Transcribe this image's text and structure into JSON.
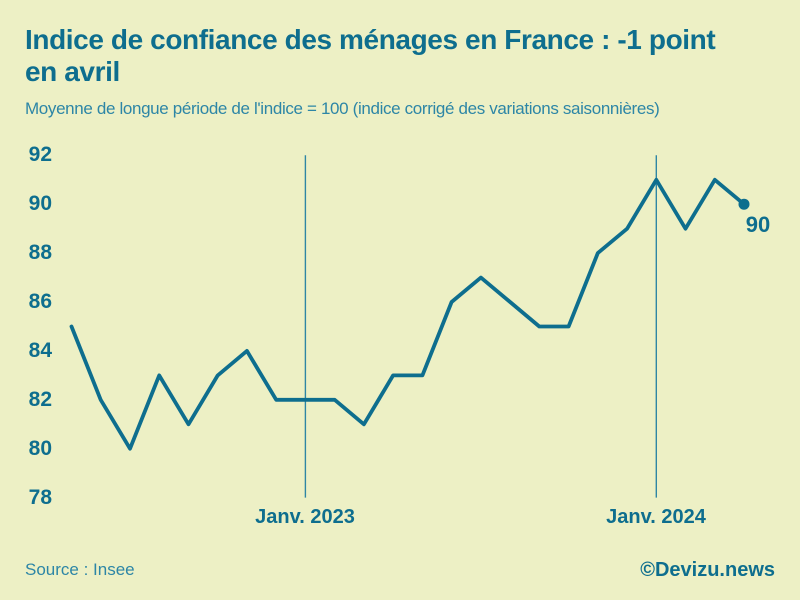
{
  "header": {
    "title_lines": [
      "Indice de confiance des ménages en France : -1 point",
      "en avril"
    ],
    "subtitle": "Moyenne de longue période de l'indice = 100 (indice corrigé des variations saisonnières)"
  },
  "chart_data": {
    "type": "line",
    "title": "Indice de confiance des ménages en France : -1 point en avril",
    "subtitle": "Moyenne de longue période de l'indice = 100 (indice corrigé des variations saisonnières)",
    "x_unit": "month",
    "x_range_note": "monthly points from May 2022 to April 2024",
    "values": [
      85,
      82,
      80,
      83,
      81,
      83,
      84,
      82,
      82,
      82,
      81,
      83,
      83,
      86,
      87,
      86,
      85,
      85,
      88,
      89,
      91,
      89,
      91,
      90
    ],
    "x_tick_labels": [
      {
        "index": 8,
        "label": "Janv. 2023"
      },
      {
        "index": 20,
        "label": "Janv. 2024"
      }
    ],
    "yticks": [
      92,
      90,
      88,
      86,
      84,
      82,
      80,
      78
    ],
    "ylim": [
      78,
      92
    ],
    "grid": false,
    "legend": "none",
    "last_point_marker": true,
    "end_point_label": "90"
  },
  "footer": {
    "source": "Source : Insee",
    "credit": "©Devizu.news"
  },
  "colors": {
    "background": "#edf0c5",
    "line": "#0e6e8e",
    "text_primary": "#0e6e8e",
    "text_secondary": "#2d86a6",
    "vline": "#2f86a4"
  }
}
